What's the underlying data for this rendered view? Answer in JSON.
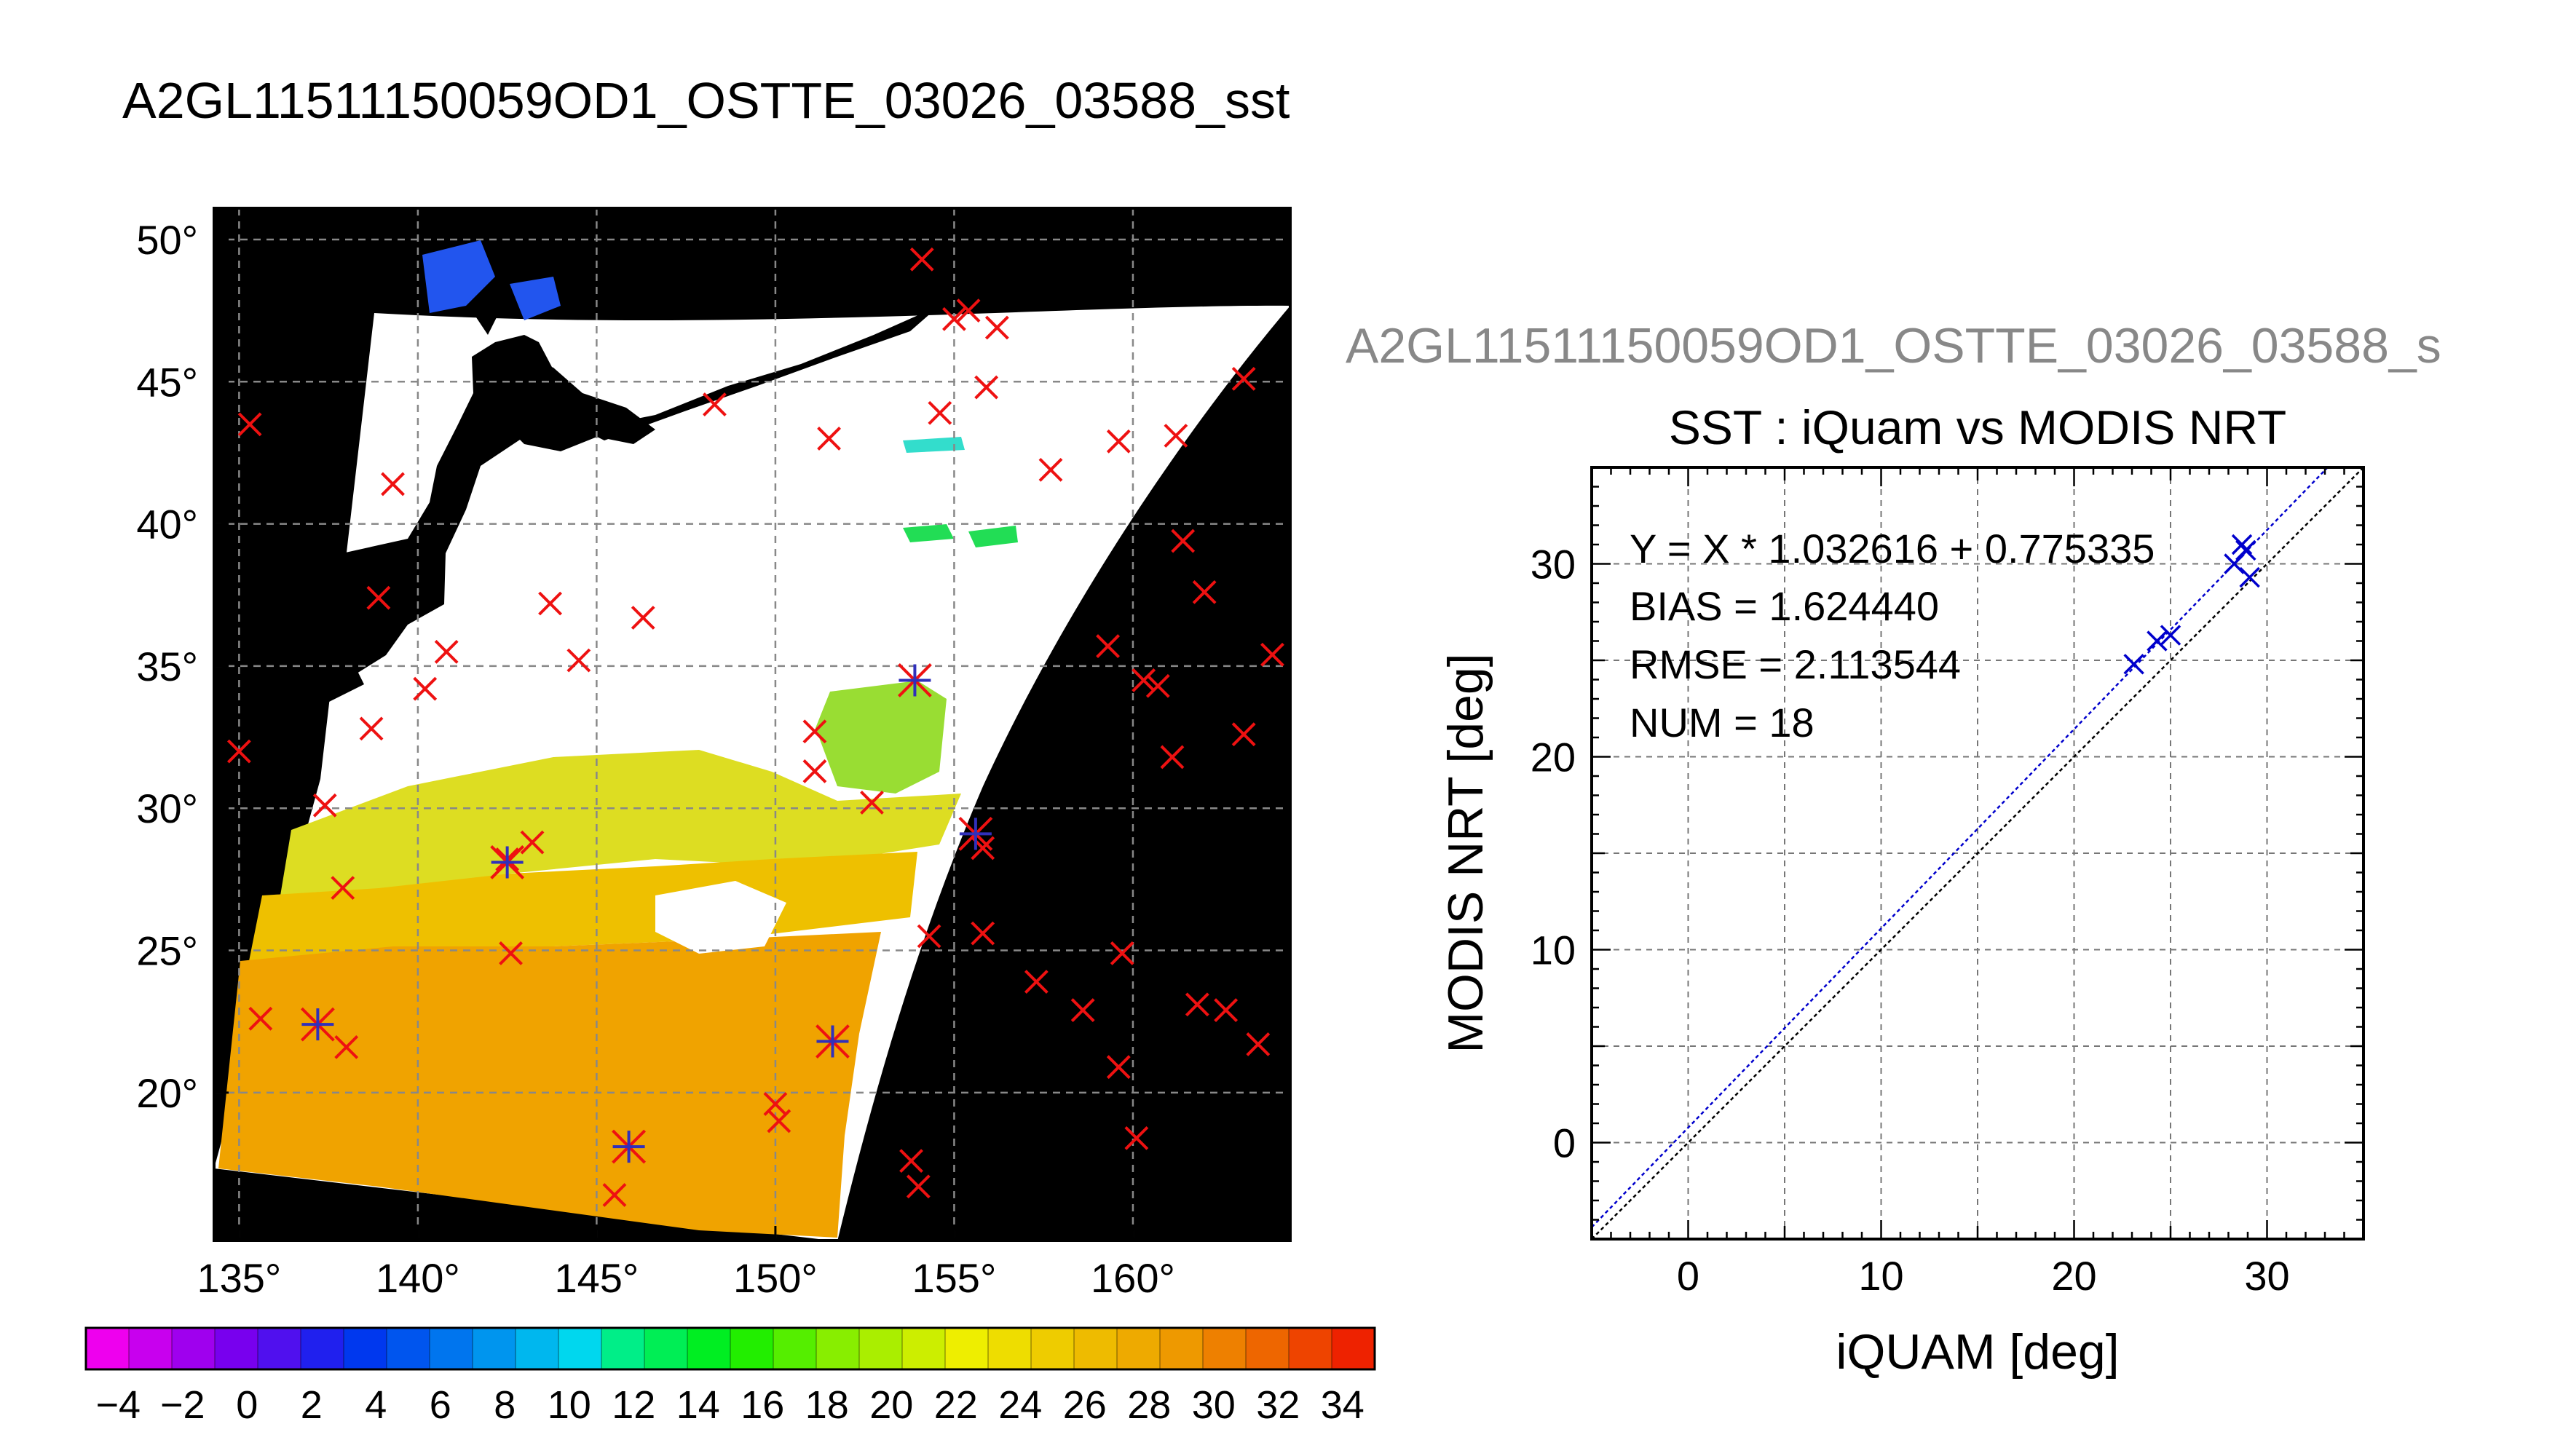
{
  "page_title": "A2GL11511150059OD1_OSTTE_03026_03588_sst",
  "chart_data": [
    {
      "type": "map",
      "title": "A2GL11511150059OD1_OSTTE_03026_03588_sst",
      "lon_ticks": [
        "135°",
        "140°",
        "145°",
        "150°",
        "155°",
        "160°"
      ],
      "lat_ticks": [
        "50°",
        "45°",
        "40°",
        "35°",
        "30°",
        "25°",
        "20°"
      ],
      "lon_range": [
        134.3,
        164.4
      ],
      "lat_range": [
        14.8,
        51.1
      ],
      "grid": true,
      "colorbar": {
        "range": [
          -5,
          35
        ],
        "labels": [
          "−4",
          "−2",
          "0",
          "2",
          "4",
          "6",
          "8",
          "10",
          "12",
          "14",
          "16",
          "18",
          "20",
          "22",
          "24",
          "26",
          "28",
          "30",
          "32",
          "34"
        ],
        "colors": [
          "#ee00ee",
          "#c800ee",
          "#9f00ee",
          "#7800ee",
          "#5010ee",
          "#2020ee",
          "#0038ee",
          "#0055ee",
          "#0075ee",
          "#0095ee",
          "#00b7ee",
          "#00d7ee",
          "#00ee88",
          "#00ee55",
          "#00ee22",
          "#22ee00",
          "#55ee00",
          "#88ee00",
          "#aaee00",
          "#ccee00",
          "#eeee00",
          "#eedd00",
          "#eecc00",
          "#eebb00",
          "#eeaa00",
          "#ee9900",
          "#ee8000",
          "#ee6600",
          "#ee4400",
          "#ee2200"
        ]
      },
      "match_markers": [
        {
          "lon": 135.0,
          "lat": 32.0
        },
        {
          "lon": 135.6,
          "lat": 22.6
        },
        {
          "lon": 135.3,
          "lat": 43.5
        },
        {
          "lon": 138.0,
          "lat": 21.6
        },
        {
          "lon": 137.4,
          "lat": 30.1
        },
        {
          "lon": 137.9,
          "lat": 27.2
        },
        {
          "lon": 138.7,
          "lat": 32.8
        },
        {
          "lon": 138.9,
          "lat": 37.4
        },
        {
          "lon": 139.3,
          "lat": 41.4
        },
        {
          "lon": 140.2,
          "lat": 34.2
        },
        {
          "lon": 140.8,
          "lat": 35.5
        },
        {
          "lon": 142.5,
          "lat": 28.2
        },
        {
          "lon": 143.2,
          "lat": 28.8
        },
        {
          "lon": 142.6,
          "lat": 24.9
        },
        {
          "lon": 143.7,
          "lat": 37.2
        },
        {
          "lon": 144.5,
          "lat": 35.2
        },
        {
          "lon": 146.3,
          "lat": 36.7
        },
        {
          "lon": 145.5,
          "lat": 16.4
        },
        {
          "lon": 148.3,
          "lat": 44.2
        },
        {
          "lon": 150.0,
          "lat": 19.6
        },
        {
          "lon": 150.1,
          "lat": 19.0
        },
        {
          "lon": 151.1,
          "lat": 32.7
        },
        {
          "lon": 151.1,
          "lat": 31.3
        },
        {
          "lon": 152.7,
          "lat": 30.2
        },
        {
          "lon": 151.5,
          "lat": 43.0
        },
        {
          "lon": 153.8,
          "lat": 17.6
        },
        {
          "lon": 154.0,
          "lat": 16.7
        },
        {
          "lon": 154.3,
          "lat": 25.5
        },
        {
          "lon": 154.1,
          "lat": 49.3
        },
        {
          "lon": 154.6,
          "lat": 43.9
        },
        {
          "lon": 155.0,
          "lat": 47.2
        },
        {
          "lon": 155.4,
          "lat": 47.5
        },
        {
          "lon": 155.9,
          "lat": 44.8
        },
        {
          "lon": 156.2,
          "lat": 46.9
        },
        {
          "lon": 155.8,
          "lat": 28.6
        },
        {
          "lon": 155.8,
          "lat": 25.6
        },
        {
          "lon": 157.3,
          "lat": 23.9
        },
        {
          "lon": 157.7,
          "lat": 41.9
        },
        {
          "lon": 158.6,
          "lat": 22.9
        },
        {
          "lon": 159.3,
          "lat": 35.7
        },
        {
          "lon": 159.6,
          "lat": 42.9
        },
        {
          "lon": 159.7,
          "lat": 24.9
        },
        {
          "lon": 159.6,
          "lat": 20.9
        },
        {
          "lon": 160.1,
          "lat": 18.4
        },
        {
          "lon": 160.3,
          "lat": 34.5
        },
        {
          "lon": 160.7,
          "lat": 34.3
        },
        {
          "lon": 161.1,
          "lat": 31.8
        },
        {
          "lon": 161.2,
          "lat": 43.1
        },
        {
          "lon": 161.4,
          "lat": 39.4
        },
        {
          "lon": 161.8,
          "lat": 23.1
        },
        {
          "lon": 162.0,
          "lat": 37.6
        },
        {
          "lon": 162.6,
          "lat": 22.9
        },
        {
          "lon": 163.1,
          "lat": 32.6
        },
        {
          "lon": 163.1,
          "lat": 45.1
        },
        {
          "lon": 163.5,
          "lat": 21.7
        },
        {
          "lon": 163.9,
          "lat": 35.4
        }
      ],
      "collocated_markers": [
        {
          "lon": 137.2,
          "lat": 22.4
        },
        {
          "lon": 142.5,
          "lat": 28.1
        },
        {
          "lon": 145.9,
          "lat": 18.1
        },
        {
          "lon": 151.6,
          "lat": 21.8
        },
        {
          "lon": 153.9,
          "lat": 34.5
        },
        {
          "lon": 155.6,
          "lat": 29.1
        }
      ]
    },
    {
      "type": "scatter",
      "header": "A2GL11511150059OD1_OSTTE_03026_03588_s",
      "title": "SST : iQuam vs MODIS NRT",
      "xlabel": "iQUAM [deg]",
      "ylabel": "MODIS NRT [deg]",
      "xlim": [
        -5,
        35
      ],
      "ylim": [
        -5,
        35
      ],
      "xticks": [
        "0",
        "10",
        "20",
        "30"
      ],
      "yticks": [
        "0",
        "10",
        "20",
        "30"
      ],
      "grid": true,
      "stats": [
        "Y = X * 1.032616 + 0.775335",
        "BIAS = 1.624440",
        "RMSE = 2.113544",
        "NUM = 18"
      ],
      "fit": {
        "slope": 1.032616,
        "intercept": 0.775335,
        "color": "#0000cc"
      },
      "identity": {
        "slope": 1,
        "intercept": 0,
        "color": "#000000"
      },
      "points": [
        {
          "x": 23.1,
          "y": 24.8
        },
        {
          "x": 24.3,
          "y": 26.0
        },
        {
          "x": 25.0,
          "y": 26.3
        },
        {
          "x": 28.3,
          "y": 30.0
        },
        {
          "x": 28.7,
          "y": 31.0
        },
        {
          "x": 28.9,
          "y": 30.7
        },
        {
          "x": 29.1,
          "y": 29.3
        }
      ],
      "point_color": "#0000cc"
    }
  ]
}
